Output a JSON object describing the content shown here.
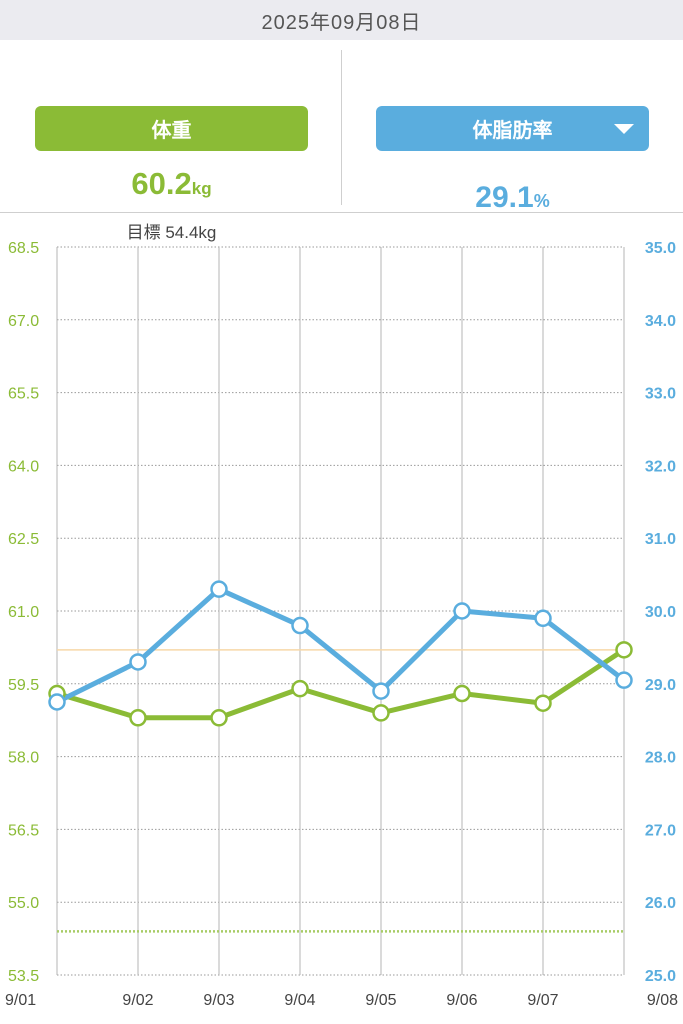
{
  "header": {
    "date": "2025年09月08日"
  },
  "summary": {
    "weight": {
      "label": "体重",
      "value": "60.2",
      "unit": "kg",
      "target_label": "目標 54.4kg"
    },
    "fat": {
      "label": "体脂肪率",
      "value": "29.1",
      "unit": "%"
    }
  },
  "chart_data": {
    "type": "line",
    "categories": [
      "9/01",
      "9/02",
      "9/03",
      "9/04",
      "9/05",
      "9/06",
      "9/07",
      "9/08"
    ],
    "series": [
      {
        "axis": "left",
        "color": "#8bbb36",
        "values": [
          59.3,
          58.8,
          58.8,
          59.4,
          58.9,
          59.3,
          59.1,
          60.2
        ]
      },
      {
        "axis": "right",
        "color": "#5aadde",
        "values": [
          28.75,
          29.3,
          30.3,
          29.8,
          28.9,
          30.0,
          29.9,
          29.05
        ]
      }
    ],
    "left_axis": {
      "min": 53.5,
      "max": 68.5,
      "ticks": [
        "68.5",
        "67.0",
        "65.5",
        "64.0",
        "62.5",
        "61.0",
        "59.5",
        "58.0",
        "56.5",
        "55.0",
        "53.5"
      ],
      "color": "#8bbb36"
    },
    "right_axis": {
      "min": 25.0,
      "max": 35.0,
      "ticks": [
        "35.0",
        "34.0",
        "33.0",
        "32.0",
        "31.0",
        "30.0",
        "29.0",
        "28.0",
        "27.0",
        "26.0",
        "25.0"
      ],
      "color": "#5aadde"
    },
    "reference_lines": [
      {
        "axis": "left",
        "value": 60.2,
        "color": "#f7d8a8",
        "style": "solid"
      },
      {
        "axis": "left",
        "value": 54.4,
        "color": "#a8cc66",
        "style": "dotted"
      }
    ],
    "grid": true
  }
}
